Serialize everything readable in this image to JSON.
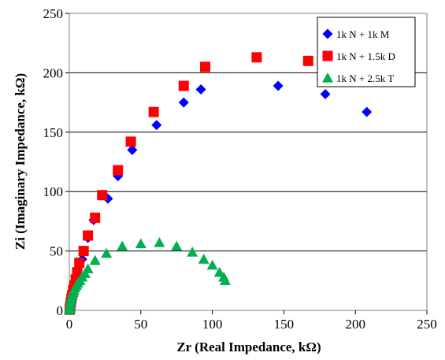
{
  "chart_data": {
    "type": "scatter",
    "xlabel": "Zr (Real Impedance, kΩ)",
    "ylabel": "Zi (Imaginary Impedance, kΩ)",
    "xlim": [
      0,
      250
    ],
    "ylim": [
      0,
      250
    ],
    "x_ticks": [
      0,
      50,
      100,
      150,
      200,
      250
    ],
    "y_ticks": [
      0,
      50,
      100,
      150,
      200,
      250
    ],
    "grid": "horizontal",
    "legend_position": "top-right",
    "series": [
      {
        "name": "1k N + 1k M",
        "marker": "diamond",
        "color": "#0000ff",
        "points": [
          [
            0.2,
            0.3
          ],
          [
            0.4,
            1.5
          ],
          [
            0.6,
            3
          ],
          [
            0.8,
            5
          ],
          [
            1,
            7
          ],
          [
            1.3,
            9
          ],
          [
            1.7,
            12
          ],
          [
            2.2,
            15
          ],
          [
            2.8,
            19
          ],
          [
            3.5,
            23
          ],
          [
            4.5,
            28
          ],
          [
            6,
            34
          ],
          [
            9,
            43
          ],
          [
            13,
            61
          ],
          [
            17,
            76
          ],
          [
            27,
            94
          ],
          [
            34,
            113
          ],
          [
            44,
            135
          ],
          [
            61,
            156
          ],
          [
            80,
            175
          ],
          [
            92,
            186
          ],
          [
            146,
            189
          ],
          [
            179,
            182
          ],
          [
            208,
            167
          ]
        ]
      },
      {
        "name": "1k N + 1.5k D",
        "marker": "square",
        "color": "#ff0000",
        "points": [
          [
            0.3,
            0.5
          ],
          [
            0.5,
            2
          ],
          [
            0.8,
            4
          ],
          [
            1.1,
            7
          ],
          [
            1.5,
            10
          ],
          [
            2,
            13
          ],
          [
            2.7,
            17
          ],
          [
            3.5,
            21
          ],
          [
            4.5,
            26
          ],
          [
            5.5,
            32
          ],
          [
            7,
            40
          ],
          [
            10,
            50
          ],
          [
            13,
            63
          ],
          [
            18,
            78
          ],
          [
            23,
            97
          ],
          [
            34,
            118
          ],
          [
            43,
            142
          ],
          [
            59,
            167
          ],
          [
            80,
            189
          ],
          [
            95,
            205
          ],
          [
            131,
            213
          ],
          [
            167,
            210
          ]
        ]
      },
      {
        "name": "1k N + 2.5k T",
        "marker": "triangle",
        "color": "#00b050",
        "points": [
          [
            0.1,
            0.3
          ],
          [
            0.2,
            1.5
          ],
          [
            0.4,
            3
          ],
          [
            0.6,
            5
          ],
          [
            0.9,
            7
          ],
          [
            1.2,
            9
          ],
          [
            1.6,
            11
          ],
          [
            2,
            13
          ],
          [
            2.6,
            15
          ],
          [
            3.2,
            17
          ],
          [
            4,
            19
          ],
          [
            5,
            21
          ],
          [
            6,
            23
          ],
          [
            7.5,
            25
          ],
          [
            9,
            28
          ],
          [
            11,
            31
          ],
          [
            13,
            35
          ],
          [
            18,
            42
          ],
          [
            26,
            48
          ],
          [
            37,
            54
          ],
          [
            50,
            56
          ],
          [
            63,
            57
          ],
          [
            75,
            54
          ],
          [
            86,
            49
          ],
          [
            94,
            43
          ],
          [
            100,
            38
          ],
          [
            105,
            32
          ],
          [
            108,
            28
          ],
          [
            109,
            25
          ]
        ]
      }
    ]
  }
}
